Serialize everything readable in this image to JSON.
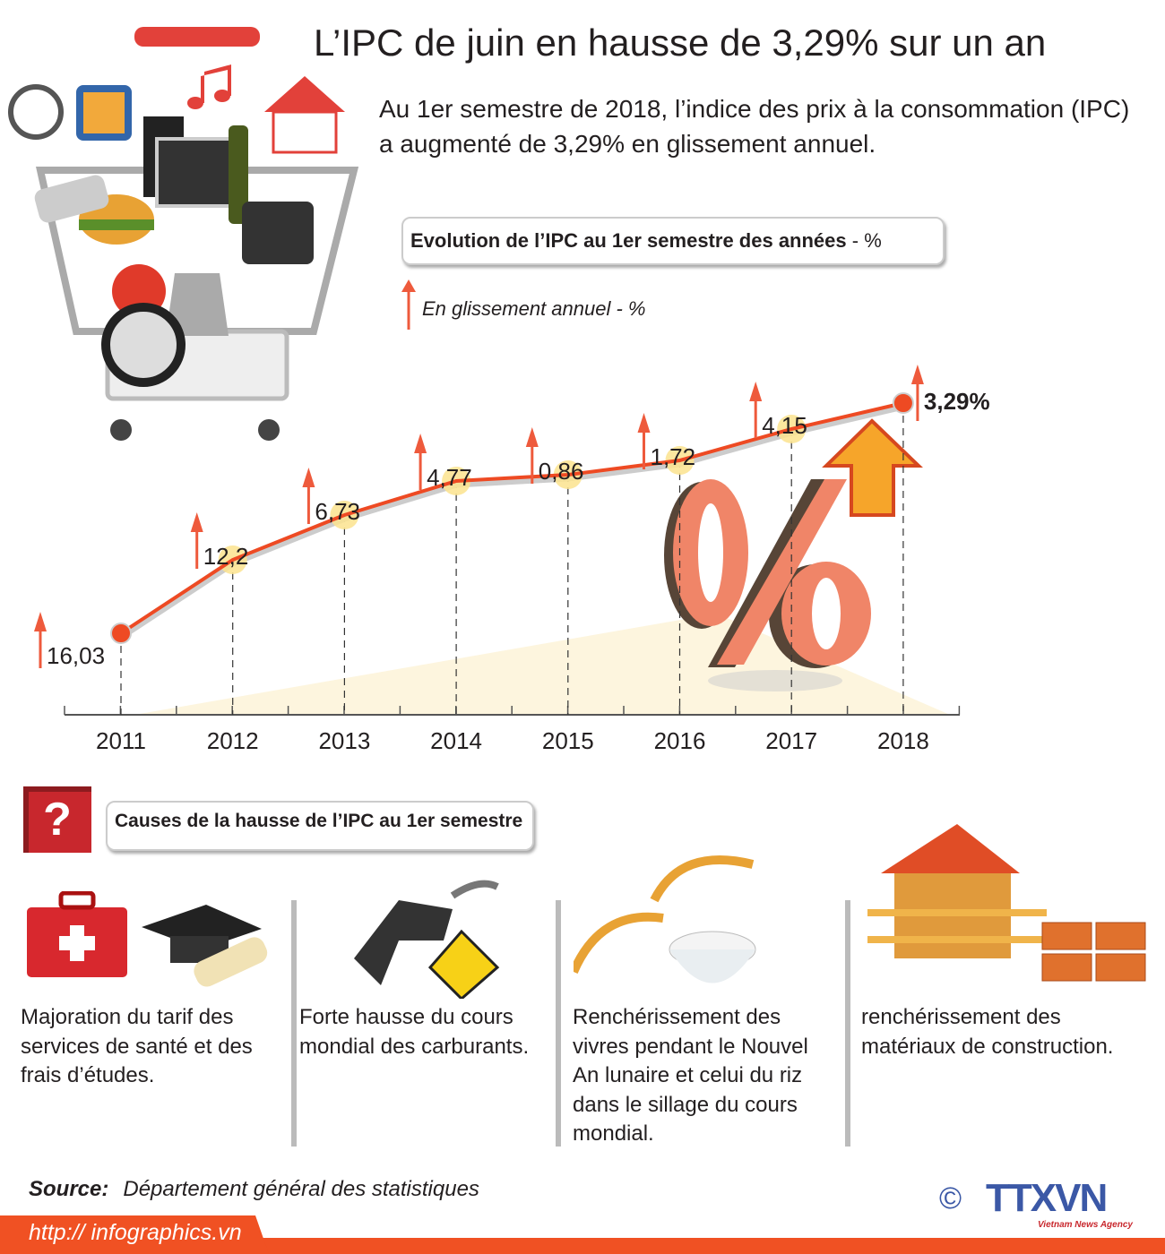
{
  "header": {
    "title": "L’IPC de juin en hausse de 3,29% sur un an",
    "subtitle": "Au 1er semestre de 2018, l’indice des prix à la consommation (IPC) a augmenté de 3,29% en glissement annuel."
  },
  "chart_box": {
    "title": "Evolution de l’IPC au 1er semestre des années",
    "unit": " - %"
  },
  "legend": {
    "label": "En glissement annuel - %",
    "icon": "arrow-up-icon"
  },
  "chart_data": {
    "type": "line",
    "title": "Evolution de l’IPC au 1er semestre des années - %",
    "categories": [
      "2011",
      "2012",
      "2013",
      "2014",
      "2015",
      "2016",
      "2017",
      "2018"
    ],
    "series": [
      {
        "name": "En glissement annuel - %",
        "values": [
          16.03,
          12.2,
          6.73,
          4.77,
          0.86,
          1.72,
          4.15,
          3.29
        ]
      }
    ],
    "value_labels": [
      "16,03",
      "12,2",
      "6,73",
      "4,77",
      "0,86",
      "1,72",
      "4,15",
      "3,29%"
    ],
    "xlabel": "",
    "ylabel": "",
    "grid": false,
    "legend": "top-left",
    "colors": {
      "line": "#ee4a23",
      "marker_highlight": "#fbe38e",
      "arrow": "#ee5a3c"
    }
  },
  "causes": {
    "title": "Causes de la hausse de l’IPC au 1er semestre",
    "icon": "question-icon",
    "items": [
      {
        "text": "Majoration du tarif des services de santé et des frais d’études.",
        "icons": [
          "first-aid-kit-icon",
          "graduation-cap-icon"
        ]
      },
      {
        "text": "Forte hausse du cours mondial des carburants.",
        "icons": [
          "fuel-nozzle-icon"
        ]
      },
      {
        "text": "Renchérissement des vivres pendant le Nouvel An lunaire et celui du riz dans le sillage du cours mondial.",
        "icons": [
          "rice-bowl-icon"
        ]
      },
      {
        "text": "renchérissement des matériaux de construction.",
        "icons": [
          "house-bricks-icon"
        ]
      }
    ]
  },
  "footer": {
    "source_label": "Source:",
    "source": "Département général des statistiques",
    "url": "http:// infographics.vn",
    "copyright": "©",
    "logo": "TTXVN",
    "logo_sub": "Vietnam News Agency",
    "accent": "#f05123"
  }
}
